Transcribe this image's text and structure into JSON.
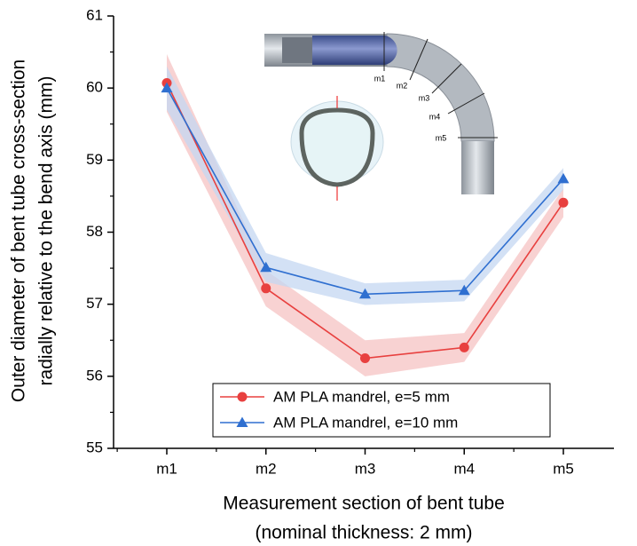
{
  "chart_data": {
    "type": "line",
    "xlabel": [
      "Measurement section of bent tube",
      "(nominal thickness: 2 mm)"
    ],
    "ylabel": [
      "Outer diameter of bent tube cross-section",
      "radially relative to the bend axis (mm)"
    ],
    "categories": [
      "m1",
      "m2",
      "m3",
      "m4",
      "m5"
    ],
    "series": [
      {
        "name": "AM PLA mandrel, e=5 mm",
        "color": "#e8403f",
        "band_color": "#f6c3c3",
        "marker": "circle",
        "values": [
          60.07,
          57.22,
          56.25,
          56.4,
          58.41
        ],
        "errors": [
          0.4,
          0.25,
          0.25,
          0.2,
          0.2
        ]
      },
      {
        "name": "AM PLA mandrel, e=10 mm",
        "color": "#2f6fd0",
        "band_color": "#c4d7f2",
        "marker": "triangle",
        "values": [
          60.0,
          57.51,
          57.14,
          57.19,
          58.74
        ],
        "errors": [
          0.3,
          0.2,
          0.15,
          0.15,
          0.15
        ]
      }
    ],
    "ylim": [
      55,
      61
    ],
    "yticks": [
      55,
      56,
      57,
      58,
      59,
      60,
      61
    ],
    "inset_labels": [
      "m1",
      "m2",
      "m3",
      "m4",
      "m5"
    ],
    "legend": "lower center"
  }
}
